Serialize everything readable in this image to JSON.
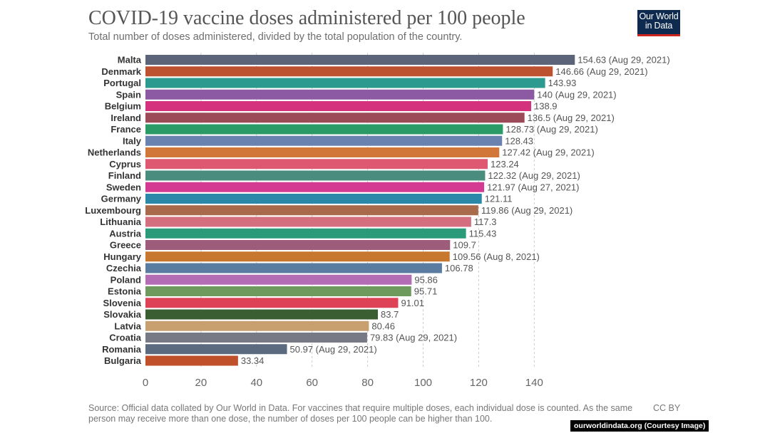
{
  "header": {
    "title": "COVID-19 vaccine doses administered per 100 people",
    "subtitle": "Total number of doses administered, divided by the total population of the country.",
    "logo_line1": "Our World",
    "logo_line2": "in Data"
  },
  "footer": {
    "source": "Source: Official data collated by Our World in Data. For vaccines that require multiple doses, each individual dose is counted. As the same person may receive more than one dose, the number of doses per 100 people can be higher than 100.",
    "license": "CC BY",
    "credit": "ourworldindata.org (Courtesy Image)"
  },
  "chart_data": {
    "type": "bar",
    "orientation": "horizontal",
    "grid": true,
    "xlim": [
      0,
      155
    ],
    "xticks": [
      0,
      20,
      40,
      60,
      80,
      100,
      120,
      140
    ],
    "categories": [
      "Malta",
      "Denmark",
      "Portugal",
      "Spain",
      "Belgium",
      "Ireland",
      "France",
      "Italy",
      "Netherlands",
      "Cyprus",
      "Finland",
      "Sweden",
      "Germany",
      "Luxembourg",
      "Lithuania",
      "Austria",
      "Greece",
      "Hungary",
      "Czechia",
      "Poland",
      "Estonia",
      "Slovenia",
      "Slovakia",
      "Latvia",
      "Croatia",
      "Romania",
      "Bulgaria"
    ],
    "values": [
      154.63,
      146.66,
      143.93,
      140,
      138.9,
      136.5,
      128.73,
      128.43,
      127.42,
      123.24,
      122.32,
      121.97,
      121.11,
      119.86,
      117.3,
      115.43,
      109.7,
      109.56,
      106.78,
      95.86,
      95.71,
      91.01,
      83.7,
      80.46,
      79.83,
      50.97,
      33.34
    ],
    "value_labels": [
      "154.63 (Aug 29, 2021)",
      "146.66 (Aug 29, 2021)",
      "143.93",
      "140 (Aug 29, 2021)",
      "138.9",
      "136.5 (Aug 29, 2021)",
      "128.73 (Aug 29, 2021)",
      "128.43",
      "127.42 (Aug 29, 2021)",
      "123.24",
      "122.32 (Aug 29, 2021)",
      "121.97 (Aug 27, 2021)",
      "121.11",
      "119.86 (Aug 29, 2021)",
      "117.3",
      "115.43",
      "109.7",
      "109.56 (Aug 8, 2021)",
      "106.78",
      "95.86",
      "95.71",
      "91.01",
      "83.7",
      "80.46",
      "79.83 (Aug 29, 2021)",
      "50.97 (Aug 29, 2021)",
      "33.34"
    ],
    "colors": [
      "#5b6478",
      "#bd5230",
      "#2c9a8e",
      "#8b5aa3",
      "#d4327c",
      "#9c4a58",
      "#2a9a67",
      "#6a82b0",
      "#d2773a",
      "#df5872",
      "#4a8c7e",
      "#d43a92",
      "#2b88a8",
      "#a86a4a",
      "#d46f80",
      "#2a9a78",
      "#9c5c7a",
      "#c8782e",
      "#5a7ca0",
      "#b46cb4",
      "#6e9a5e",
      "#dd4256",
      "#3a5e32",
      "#c8a070",
      "#777a84",
      "#5c6a80",
      "#c0502a"
    ]
  }
}
